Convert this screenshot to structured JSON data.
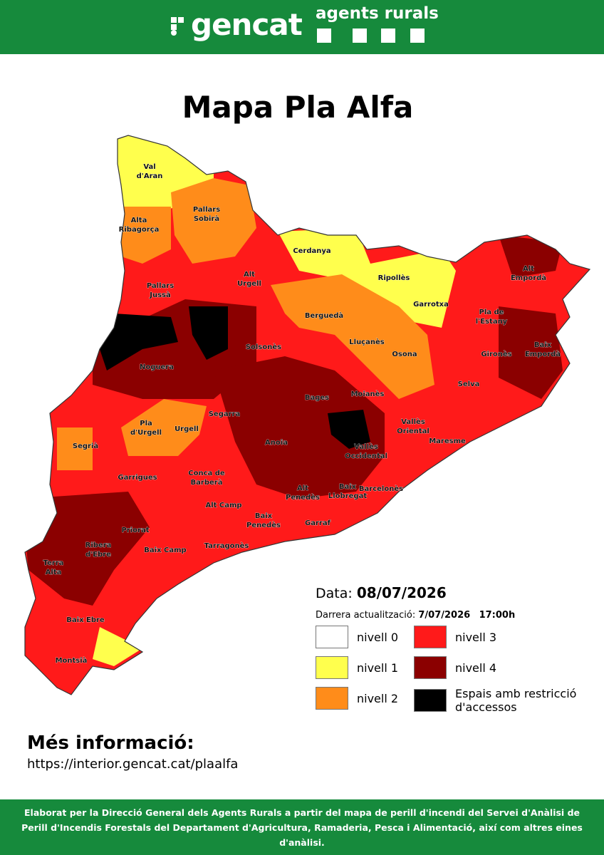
{
  "header": {
    "brand": "gencat",
    "unit": "agents rurals"
  },
  "title": "Mapa Pla Alfa",
  "map": {
    "regions": [
      {
        "lines": [
          "Val",
          "d'Aran"
        ]
      },
      {
        "lines": [
          "Pallars",
          "Sobirà"
        ]
      },
      {
        "lines": [
          "Alta",
          "Ribagorça"
        ]
      },
      {
        "lines": [
          "Cerdanya"
        ]
      },
      {
        "lines": [
          "Alt",
          "Urgell"
        ]
      },
      {
        "lines": [
          "Ripollès"
        ]
      },
      {
        "lines": [
          "Alt",
          "Empordà"
        ]
      },
      {
        "lines": [
          "Pallars",
          "Jussà"
        ]
      },
      {
        "lines": [
          "Berguedà"
        ]
      },
      {
        "lines": [
          "Garrotxa"
        ]
      },
      {
        "lines": [
          "Pla de",
          "l'Estany"
        ]
      },
      {
        "lines": [
          "Solsonès"
        ]
      },
      {
        "lines": [
          "Lluçanès"
        ]
      },
      {
        "lines": [
          "Gironès"
        ]
      },
      {
        "lines": [
          "Baix",
          "Empordà"
        ]
      },
      {
        "lines": [
          "Noguera"
        ]
      },
      {
        "lines": [
          "Osona"
        ]
      },
      {
        "lines": [
          "Bages"
        ]
      },
      {
        "lines": [
          "Moianès"
        ]
      },
      {
        "lines": [
          "Selva"
        ]
      },
      {
        "lines": [
          "Segarra"
        ]
      },
      {
        "lines": [
          "Pla",
          "d'Urgell"
        ]
      },
      {
        "lines": [
          "Urgell"
        ]
      },
      {
        "lines": [
          "Vallès",
          "Oriental"
        ]
      },
      {
        "lines": [
          "Segrià"
        ]
      },
      {
        "lines": [
          "Anoia"
        ]
      },
      {
        "lines": [
          "Maresme"
        ]
      },
      {
        "lines": [
          "Vallès",
          "Occidental"
        ]
      },
      {
        "lines": [
          "Garrigues"
        ]
      },
      {
        "lines": [
          "Conca de",
          "Barberà"
        ]
      },
      {
        "lines": [
          "Barcelonès"
        ]
      },
      {
        "lines": [
          "Baix",
          "Llobregat"
        ]
      },
      {
        "lines": [
          "Alt",
          "Penedès"
        ]
      },
      {
        "lines": [
          "Alt Camp"
        ]
      },
      {
        "lines": [
          "Baix",
          "Penedès"
        ]
      },
      {
        "lines": [
          "Garraf"
        ]
      },
      {
        "lines": [
          "Priorat"
        ]
      },
      {
        "lines": [
          "Ribera",
          "d'Ebre"
        ]
      },
      {
        "lines": [
          "Baix Camp"
        ]
      },
      {
        "lines": [
          "Tarragonès"
        ]
      },
      {
        "lines": [
          "Terra",
          "Alta"
        ]
      },
      {
        "lines": [
          "Baix Ebre"
        ]
      },
      {
        "lines": [
          "Montsià"
        ]
      }
    ]
  },
  "legend": {
    "date_label": "Data:",
    "date": "08/07/2026",
    "update_label": "Darrera actualització:",
    "update_date": "7/07/2026",
    "update_time": "17:00h",
    "items": [
      {
        "label": "nivell 0",
        "color": "#ffffff"
      },
      {
        "label": "nivell 1",
        "color": "#ffff4d"
      },
      {
        "label": "nivell 2",
        "color": "#ff8c1a"
      },
      {
        "label": "nivell 3",
        "color": "#ff1a1a"
      },
      {
        "label": "nivell 4",
        "color": "#8b0000"
      },
      {
        "label": "Espais amb restricció d'accessos",
        "color": "#000000"
      }
    ]
  },
  "info": {
    "title": "Més informació:",
    "url": "https://interior.gencat.cat/plaalfa"
  },
  "footer": "Elaborat per la Direcció General dels Agents Rurals a partir del mapa de perill d'incendi del Servei d'Anàlisi de Perill d'Incendis Forestals del Departament d'Agricultura, Ramaderia, Pesca i Alimentació, així com altres eines d'anàlisi."
}
